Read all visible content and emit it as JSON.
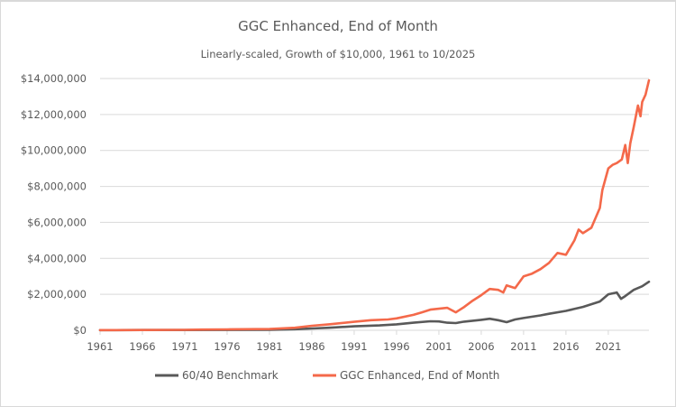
{
  "chart_data": {
    "type": "line",
    "title": "GGC Enhanced,  End of Month",
    "subtitle": "Linearly-scaled, Growth of $10,000, 1961 to 10/2025",
    "xlabel": "",
    "ylabel": "",
    "xlim": [
      1961,
      2025.8
    ],
    "ylim": [
      0,
      14000000
    ],
    "x_ticks": [
      "1961",
      "1966",
      "1971",
      "1976",
      "1981",
      "1986",
      "1991",
      "1996",
      "2001",
      "2006",
      "2011",
      "2016",
      "2021"
    ],
    "y_ticks": [
      "$0",
      "$2,000,000",
      "$4,000,000",
      "$6,000,000",
      "$8,000,000",
      "$10,000,000",
      "$12,000,000",
      "$14,000,000"
    ],
    "y_tick_values": [
      0,
      2000000,
      4000000,
      6000000,
      8000000,
      10000000,
      12000000,
      14000000
    ],
    "grid": true,
    "legend_position": "bottom",
    "series": [
      {
        "name": "60/40 Benchmark",
        "color": "#595959",
        "x": [
          1961,
          1966,
          1971,
          1976,
          1981,
          1984,
          1986,
          1988,
          1991,
          1994,
          1996,
          1998,
          2000,
          2001,
          2002,
          2003,
          2004,
          2006,
          2007,
          2008,
          2009,
          2010,
          2011,
          2013,
          2014,
          2016,
          2018,
          2019,
          2020,
          2021,
          2022,
          2022.5,
          2023,
          2024,
          2025,
          2025.8
        ],
        "values": [
          10000,
          13000,
          17000,
          22000,
          30000,
          60000,
          100000,
          140000,
          220000,
          270000,
          330000,
          420000,
          500000,
          490000,
          420000,
          400000,
          480000,
          580000,
          640000,
          560000,
          450000,
          600000,
          680000,
          830000,
          920000,
          1080000,
          1300000,
          1450000,
          1600000,
          2000000,
          2100000,
          1750000,
          1900000,
          2250000,
          2450000,
          2700000
        ]
      },
      {
        "name": "GGC Enhanced, End of Month",
        "color": "#f4694a",
        "x": [
          1961,
          1966,
          1971,
          1973,
          1976,
          1981,
          1984,
          1986,
          1988,
          1991,
          1993,
          1995,
          1996,
          1998,
          1999,
          2000,
          2001,
          2002,
          2003,
          2004,
          2005,
          2006,
          2007,
          2008,
          2008.6,
          2009,
          2010,
          2011,
          2012,
          2013,
          2014,
          2015,
          2016,
          2017,
          2017.5,
          2018,
          2019,
          2020,
          2020.3,
          2021,
          2021.5,
          2022,
          2022.6,
          2023,
          2023.3,
          2023.6,
          2024,
          2024.5,
          2024.8,
          2025,
          2025.4,
          2025.8
        ],
        "values": [
          10000,
          15000,
          25000,
          40000,
          50000,
          70000,
          140000,
          250000,
          330000,
          470000,
          560000,
          600000,
          660000,
          860000,
          1000000,
          1150000,
          1200000,
          1250000,
          1000000,
          1300000,
          1650000,
          1950000,
          2300000,
          2250000,
          2100000,
          2500000,
          2350000,
          3000000,
          3150000,
          3400000,
          3750000,
          4300000,
          4200000,
          5000000,
          5600000,
          5400000,
          5700000,
          6800000,
          7800000,
          9000000,
          9200000,
          9300000,
          9500000,
          10300000,
          9300000,
          10400000,
          11300000,
          12500000,
          11900000,
          12700000,
          13100000,
          13900000
        ]
      }
    ]
  }
}
